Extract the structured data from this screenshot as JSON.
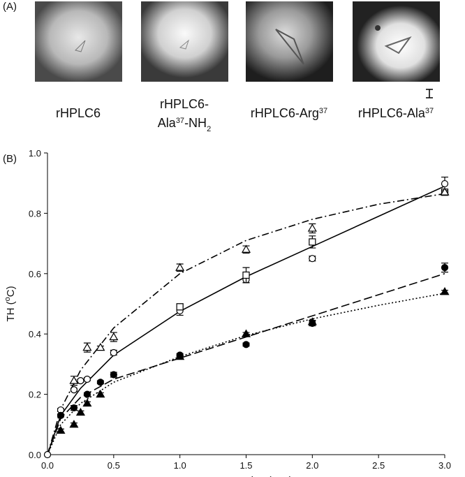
{
  "panel_a": {
    "label": "(A)",
    "images": [
      {
        "caption": [
          [
            {
              "text": "rHPLC6"
            }
          ]
        ]
      },
      {
        "caption": [
          [
            {
              "text": "rHPLC6-"
            }
          ],
          [
            {
              "text": "Ala"
            },
            {
              "text": "37",
              "style": "sup"
            },
            {
              "text": "-NH"
            },
            {
              "text": "2",
              "style": "sub"
            }
          ]
        ]
      },
      {
        "caption": [
          [
            {
              "text": "rHPLC6-Arg"
            },
            {
              "text": "37",
              "style": "sup"
            }
          ]
        ]
      },
      {
        "caption": [
          [
            {
              "text": "rHPLC6-Ala"
            },
            {
              "text": "37",
              "style": "sup"
            }
          ]
        ]
      }
    ]
  },
  "chart_data": {
    "type": "scatter",
    "panel_label": "(B)",
    "xlabel": "Concentration (mM)",
    "ylabel": [
      {
        "text": "TH ("
      },
      {
        "text": "o",
        "style": "sup"
      },
      {
        "text": "C)"
      }
    ],
    "xlim": [
      0,
      3
    ],
    "ylim": [
      0,
      1
    ],
    "xticks": [
      {
        "value": 0,
        "label": "0.0"
      },
      0.5,
      {
        "value": 1,
        "label": "1.0"
      },
      1.5,
      {
        "value": 2,
        "label": "2.0"
      },
      2.5,
      {
        "value": 3,
        "label": "3.0"
      }
    ],
    "yticks": [
      {
        "value": 0,
        "label": "0.0"
      },
      0.2,
      0.4,
      0.6,
      0.8,
      {
        "value": 1,
        "label": "1.0"
      }
    ],
    "grid": false,
    "series": [
      {
        "marker": "circle",
        "filled": false,
        "color": "#000000",
        "x": [
          0,
          0.1,
          0.2,
          0.25,
          0.3,
          0.5,
          1,
          1.5,
          2,
          3
        ],
        "values": [
          0,
          0.148,
          0.215,
          0.245,
          0.25,
          0.338,
          0.477,
          0.58,
          0.65,
          0.898
        ],
        "errors": [
          0,
          0.005,
          0.005,
          0.005,
          0.005,
          0.008,
          0.015,
          0.01,
          0.008,
          0.022
        ]
      },
      {
        "marker": "square",
        "filled": false,
        "color": "#000000",
        "x": [
          1,
          1.5,
          2,
          3
        ],
        "values": [
          0.49,
          0.595,
          0.705,
          0.87
        ],
        "errors": [
          0.01,
          0.025,
          0.02,
          0.01
        ]
      },
      {
        "marker": "triangle",
        "filled": false,
        "color": "#000000",
        "x": [
          0.2,
          0.3,
          0.4,
          0.5,
          1,
          1.5,
          2,
          3
        ],
        "values": [
          0.245,
          0.355,
          0.355,
          0.39,
          0.62,
          0.68,
          0.75,
          0.87
        ],
        "errors": [
          0.015,
          0.015,
          0.005,
          0.015,
          0.012,
          0.012,
          0.015,
          0.005
        ]
      },
      {
        "marker": "circle",
        "filled": true,
        "color": "#000000",
        "x": [
          0.1,
          0.2,
          0.3,
          0.4,
          0.5,
          1,
          1.5,
          2,
          3
        ],
        "values": [
          0.13,
          0.155,
          0.2,
          0.24,
          0.265,
          0.33,
          0.365,
          0.435,
          0.62
        ],
        "errors": [
          0.005,
          0.008,
          0.005,
          0.005,
          0.008,
          0.005,
          0.005,
          0.008,
          0.015
        ]
      },
      {
        "marker": "triangle",
        "filled": true,
        "color": "#000000",
        "x": [
          0.1,
          0.2,
          0.25,
          0.3,
          0.4,
          1,
          1.5,
          2,
          3
        ],
        "values": [
          0.08,
          0.1,
          0.14,
          0.17,
          0.2,
          0.325,
          0.4,
          0.44,
          0.54
        ],
        "errors": [
          0.005,
          0.005,
          0.005,
          0.005,
          0.005,
          0.005,
          0.005,
          0.005,
          0.005
        ]
      }
    ],
    "fits": [
      {
        "dash": "solid",
        "color": "#000000",
        "x": [
          0,
          0.1,
          0.25,
          0.5,
          1,
          1.5,
          2,
          2.5,
          3
        ],
        "values": [
          0,
          0.13,
          0.22,
          0.33,
          0.475,
          0.59,
          0.69,
          0.79,
          0.89
        ]
      },
      {
        "dash": "dashdot",
        "color": "#000000",
        "x": [
          0,
          0.1,
          0.25,
          0.5,
          1,
          1.5,
          2,
          2.5,
          3
        ],
        "values": [
          0,
          0.15,
          0.28,
          0.42,
          0.6,
          0.71,
          0.78,
          0.83,
          0.865
        ]
      },
      {
        "dash": "dashed",
        "color": "#000000",
        "x": [
          0,
          0.1,
          0.25,
          0.5,
          1,
          1.5,
          2,
          2.5,
          3
        ],
        "values": [
          0,
          0.12,
          0.19,
          0.25,
          0.32,
          0.39,
          0.46,
          0.53,
          0.6
        ]
      },
      {
        "dash": "dotted",
        "color": "#000000",
        "x": [
          0,
          0.1,
          0.25,
          0.5,
          1,
          1.5,
          2,
          2.5,
          3
        ],
        "values": [
          0,
          0.1,
          0.17,
          0.24,
          0.325,
          0.395,
          0.45,
          0.495,
          0.535
        ]
      }
    ]
  }
}
